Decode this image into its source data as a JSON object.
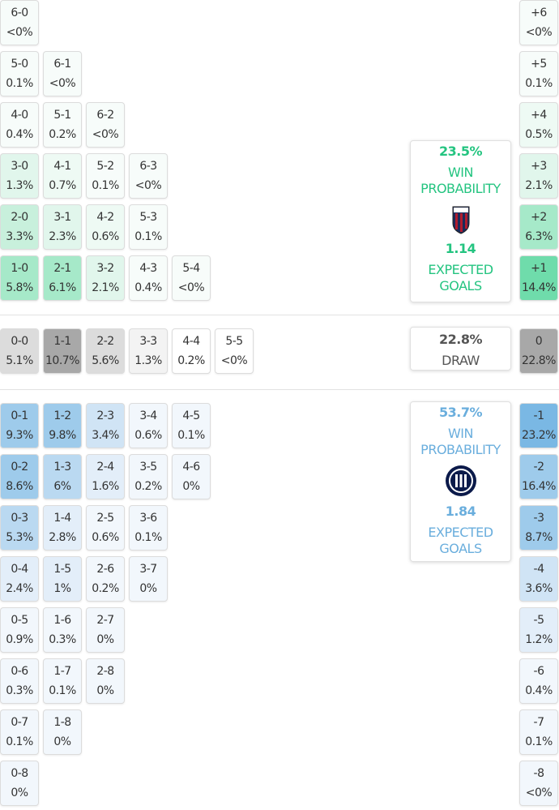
{
  "home": {
    "grid": [
      [
        {
          "score": "6-0",
          "prob": "<0%"
        }
      ],
      [
        {
          "score": "5-0",
          "prob": "0.1%"
        },
        {
          "score": "6-1",
          "prob": "<0%"
        }
      ],
      [
        {
          "score": "4-0",
          "prob": "0.4%"
        },
        {
          "score": "5-1",
          "prob": "0.2%"
        },
        {
          "score": "6-2",
          "prob": "<0%"
        }
      ],
      [
        {
          "score": "3-0",
          "prob": "1.3%"
        },
        {
          "score": "4-1",
          "prob": "0.7%"
        },
        {
          "score": "5-2",
          "prob": "0.1%"
        },
        {
          "score": "6-3",
          "prob": "<0%"
        }
      ],
      [
        {
          "score": "2-0",
          "prob": "3.3%"
        },
        {
          "score": "3-1",
          "prob": "2.3%"
        },
        {
          "score": "4-2",
          "prob": "0.6%"
        },
        {
          "score": "5-3",
          "prob": "0.1%"
        }
      ],
      [
        {
          "score": "1-0",
          "prob": "5.8%"
        },
        {
          "score": "2-1",
          "prob": "6.1%"
        },
        {
          "score": "3-2",
          "prob": "2.1%"
        },
        {
          "score": "4-3",
          "prob": "0.4%"
        },
        {
          "score": "5-4",
          "prob": "<0%"
        }
      ]
    ],
    "margins": [
      {
        "score": "+6",
        "prob": "<0%"
      },
      {
        "score": "+5",
        "prob": "0.1%"
      },
      {
        "score": "+4",
        "prob": "0.5%"
      },
      {
        "score": "+3",
        "prob": "2.1%"
      },
      {
        "score": "+2",
        "prob": "6.3%"
      },
      {
        "score": "+1",
        "prob": "14.4%"
      }
    ],
    "card": {
      "win": "23.5%",
      "win_label": "WIN PROBABILITY",
      "xg": "1.14",
      "xg_label": "EXPECTED GOALS"
    }
  },
  "draw": {
    "grid": [
      [
        {
          "score": "0-0",
          "prob": "5.1%"
        },
        {
          "score": "1-1",
          "prob": "10.7%"
        },
        {
          "score": "2-2",
          "prob": "5.6%"
        },
        {
          "score": "3-3",
          "prob": "1.3%"
        },
        {
          "score": "4-4",
          "prob": "0.2%"
        },
        {
          "score": "5-5",
          "prob": "<0%"
        }
      ]
    ],
    "margins": [
      {
        "score": "0",
        "prob": "22.8%"
      }
    ],
    "card": {
      "value": "22.8%",
      "label": "DRAW"
    }
  },
  "away": {
    "grid": [
      [
        {
          "score": "0-1",
          "prob": "9.3%"
        },
        {
          "score": "1-2",
          "prob": "9.8%"
        },
        {
          "score": "2-3",
          "prob": "3.4%"
        },
        {
          "score": "3-4",
          "prob": "0.6%"
        },
        {
          "score": "4-5",
          "prob": "0.1%"
        }
      ],
      [
        {
          "score": "0-2",
          "prob": "8.6%"
        },
        {
          "score": "1-3",
          "prob": "6%"
        },
        {
          "score": "2-4",
          "prob": "1.6%"
        },
        {
          "score": "3-5",
          "prob": "0.2%"
        },
        {
          "score": "4-6",
          "prob": "0%"
        }
      ],
      [
        {
          "score": "0-3",
          "prob": "5.3%"
        },
        {
          "score": "1-4",
          "prob": "2.8%"
        },
        {
          "score": "2-5",
          "prob": "0.6%"
        },
        {
          "score": "3-6",
          "prob": "0.1%"
        }
      ],
      [
        {
          "score": "0-4",
          "prob": "2.4%"
        },
        {
          "score": "1-5",
          "prob": "1%"
        },
        {
          "score": "2-6",
          "prob": "0.2%"
        },
        {
          "score": "3-7",
          "prob": "0%"
        }
      ],
      [
        {
          "score": "0-5",
          "prob": "0.9%"
        },
        {
          "score": "1-6",
          "prob": "0.3%"
        },
        {
          "score": "2-7",
          "prob": "0%"
        }
      ],
      [
        {
          "score": "0-6",
          "prob": "0.3%"
        },
        {
          "score": "1-7",
          "prob": "0.1%"
        },
        {
          "score": "2-8",
          "prob": "0%"
        }
      ],
      [
        {
          "score": "0-7",
          "prob": "0.1%"
        },
        {
          "score": "1-8",
          "prob": "0%"
        }
      ],
      [
        {
          "score": "0-8",
          "prob": "0%"
        }
      ]
    ],
    "margins": [
      {
        "score": "-1",
        "prob": "23.2%"
      },
      {
        "score": "-2",
        "prob": "16.4%"
      },
      {
        "score": "-3",
        "prob": "8.7%"
      },
      {
        "score": "-4",
        "prob": "3.6%"
      },
      {
        "score": "-5",
        "prob": "1.2%"
      },
      {
        "score": "-6",
        "prob": "0.4%"
      },
      {
        "score": "-7",
        "prob": "0.1%"
      },
      {
        "score": "-8",
        "prob": "<0%"
      }
    ],
    "card": {
      "win": "53.7%",
      "win_label": "WIN PROBABILITY",
      "xg": "1.84",
      "xg_label": "EXPECTED GOALS"
    }
  }
}
